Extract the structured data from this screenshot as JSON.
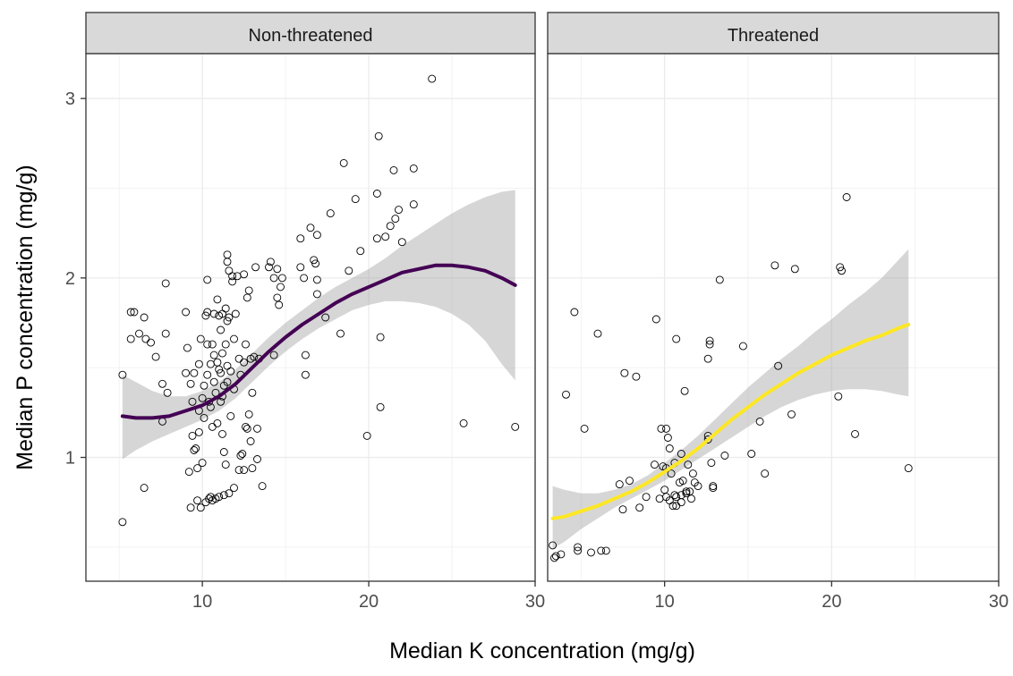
{
  "chart_data": {
    "type": "scatter",
    "x_label": "Median K concentration (mg/g)",
    "y_label": "Median P concentration (mg/g)",
    "x_ticks": [
      10,
      20,
      30
    ],
    "y_ticks": [
      1,
      2,
      3
    ],
    "x_range": [
      3,
      30
    ],
    "y_range": [
      0.31,
      3.25
    ],
    "grid": true,
    "facets": [
      {
        "label": "Non-threatened",
        "smooth_color": "#440154",
        "points": [
          [
            5.2,
            0.64
          ],
          [
            5.2,
            1.46
          ],
          [
            6.5,
            0.83
          ],
          [
            5.7,
            1.81
          ],
          [
            5.9,
            1.81
          ],
          [
            5.7,
            1.66
          ],
          [
            6.2,
            1.69
          ],
          [
            6.5,
            1.78
          ],
          [
            6.6,
            1.66
          ],
          [
            6.9,
            1.64
          ],
          [
            7.2,
            1.56
          ],
          [
            7.6,
            1.41
          ],
          [
            7.6,
            1.2
          ],
          [
            7.8,
            1.97
          ],
          [
            7.8,
            1.69
          ],
          [
            7.9,
            1.36
          ],
          [
            9.0,
            1.81
          ],
          [
            9.0,
            1.47
          ],
          [
            9.1,
            1.61
          ],
          [
            9.2,
            0.92
          ],
          [
            9.3,
            0.72
          ],
          [
            9.3,
            1.41
          ],
          [
            9.4,
            1.31
          ],
          [
            9.4,
            1.12
          ],
          [
            9.5,
            1.04
          ],
          [
            9.5,
            1.47
          ],
          [
            9.6,
            1.05
          ],
          [
            9.7,
            0.76
          ],
          [
            9.7,
            0.94
          ],
          [
            9.8,
            1.52
          ],
          [
            9.8,
            1.26
          ],
          [
            9.8,
            1.14
          ],
          [
            9.9,
            1.66
          ],
          [
            9.9,
            0.72
          ],
          [
            10.0,
            0.97
          ],
          [
            10.0,
            1.33
          ],
          [
            10.1,
            1.4
          ],
          [
            10.1,
            1.22
          ],
          [
            10.2,
            1.79
          ],
          [
            10.2,
            0.75
          ],
          [
            10.3,
            1.99
          ],
          [
            10.3,
            1.81
          ],
          [
            10.3,
            1.63
          ],
          [
            10.3,
            1.46
          ],
          [
            10.4,
            1.31
          ],
          [
            10.4,
            0.77
          ],
          [
            10.5,
            1.52
          ],
          [
            10.5,
            1.28
          ],
          [
            10.6,
            1.17
          ],
          [
            10.6,
            0.76
          ],
          [
            10.7,
            1.8
          ],
          [
            10.7,
            1.57
          ],
          [
            10.7,
            1.42
          ],
          [
            10.8,
            1.36
          ],
          [
            10.8,
            0.77
          ],
          [
            10.9,
            1.88
          ],
          [
            10.9,
            1.53
          ],
          [
            10.9,
            1.19
          ],
          [
            11.0,
            1.79
          ],
          [
            11.0,
            0.78
          ],
          [
            11.1,
            1.71
          ],
          [
            11.1,
            1.47
          ],
          [
            11.1,
            1.31
          ],
          [
            11.2,
            1.8
          ],
          [
            11.2,
            1.58
          ],
          [
            11.2,
            1.34
          ],
          [
            11.2,
            1.13
          ],
          [
            11.3,
            1.4
          ],
          [
            11.3,
            1.03
          ],
          [
            11.3,
            0.79
          ],
          [
            11.4,
            1.83
          ],
          [
            11.4,
            1.63
          ],
          [
            11.4,
            0.96
          ],
          [
            11.5,
            2.13
          ],
          [
            11.5,
            2.09
          ],
          [
            11.5,
            1.76
          ],
          [
            11.5,
            1.51
          ],
          [
            11.6,
            2.04
          ],
          [
            11.6,
            1.78
          ],
          [
            11.6,
            0.8
          ],
          [
            11.7,
            1.48
          ],
          [
            11.7,
            1.23
          ],
          [
            11.8,
            2.01
          ],
          [
            11.8,
            1.98
          ],
          [
            11.9,
            1.66
          ],
          [
            11.9,
            1.38
          ],
          [
            11.9,
            0.83
          ],
          [
            12.0,
            1.8
          ],
          [
            12.1,
            2.01
          ],
          [
            12.2,
            1.55
          ],
          [
            12.2,
            0.93
          ],
          [
            12.3,
            1.46
          ],
          [
            12.3,
            1.01
          ],
          [
            12.4,
            1.02
          ],
          [
            12.5,
            2.02
          ],
          [
            12.5,
            1.53
          ],
          [
            12.5,
            0.93
          ],
          [
            12.6,
            1.63
          ],
          [
            12.6,
            1.17
          ],
          [
            12.7,
            1.89
          ],
          [
            12.7,
            1.16
          ],
          [
            12.8,
            1.93
          ],
          [
            12.8,
            1.24
          ],
          [
            12.9,
            1.55
          ],
          [
            12.9,
            1.09
          ],
          [
            13.0,
            0.94
          ],
          [
            13.0,
            1.36
          ],
          [
            13.1,
            1.56
          ],
          [
            13.2,
            2.06
          ],
          [
            13.3,
            1.16
          ],
          [
            13.3,
            0.99
          ],
          [
            13.4,
            1.55
          ],
          [
            13.6,
            0.84
          ],
          [
            14.0,
            2.06
          ],
          [
            14.1,
            2.09
          ],
          [
            14.3,
            2.0
          ],
          [
            14.3,
            1.57
          ],
          [
            14.5,
            2.05
          ],
          [
            14.5,
            1.89
          ],
          [
            14.6,
            1.85
          ],
          [
            14.7,
            1.95
          ],
          [
            14.8,
            2.0
          ],
          [
            15.9,
            2.22
          ],
          [
            15.9,
            2.06
          ],
          [
            16.1,
            2.0
          ],
          [
            16.2,
            1.46
          ],
          [
            16.2,
            1.57
          ],
          [
            16.5,
            2.28
          ],
          [
            16.7,
            2.1
          ],
          [
            16.8,
            2.08
          ],
          [
            16.9,
            2.24
          ],
          [
            16.9,
            1.91
          ],
          [
            16.9,
            1.99
          ],
          [
            17.4,
            1.78
          ],
          [
            17.7,
            2.36
          ],
          [
            18.3,
            1.69
          ],
          [
            18.5,
            2.64
          ],
          [
            18.8,
            2.04
          ],
          [
            19.2,
            2.44
          ],
          [
            19.5,
            2.15
          ],
          [
            19.9,
            1.12
          ],
          [
            20.5,
            2.47
          ],
          [
            20.5,
            2.22
          ],
          [
            20.6,
            2.79
          ],
          [
            20.7,
            1.67
          ],
          [
            20.7,
            1.28
          ],
          [
            21.0,
            2.23
          ],
          [
            21.3,
            2.29
          ],
          [
            21.5,
            2.6
          ],
          [
            21.6,
            2.33
          ],
          [
            21.8,
            2.38
          ],
          [
            22.0,
            2.2
          ],
          [
            22.7,
            2.41
          ],
          [
            22.7,
            2.61
          ],
          [
            23.8,
            3.11
          ],
          [
            25.7,
            1.19
          ],
          [
            28.8,
            1.17
          ],
          [
            11.5,
            1.42
          ],
          [
            10.5,
            0.78
          ],
          [
            11.0,
            1.49
          ],
          [
            10.6,
            1.63
          ]
        ],
        "smooth": {
          "x": [
            5.2,
            6.0,
            7.0,
            8.0,
            9.0,
            10.0,
            11.0,
            12.0,
            13.0,
            14.0,
            15.0,
            16.0,
            17.0,
            18.0,
            19.0,
            20.0,
            21.0,
            22.0,
            23.0,
            24.0,
            25.0,
            26.0,
            27.0,
            28.0,
            28.8
          ],
          "fit": [
            1.23,
            1.22,
            1.22,
            1.23,
            1.26,
            1.29,
            1.34,
            1.41,
            1.5,
            1.59,
            1.67,
            1.74,
            1.8,
            1.86,
            1.91,
            1.95,
            1.99,
            2.03,
            2.05,
            2.07,
            2.07,
            2.06,
            2.04,
            2.0,
            1.96
          ],
          "lower": [
            0.99,
            1.04,
            1.09,
            1.13,
            1.17,
            1.21,
            1.26,
            1.33,
            1.42,
            1.51,
            1.59,
            1.66,
            1.72,
            1.77,
            1.82,
            1.85,
            1.87,
            1.87,
            1.86,
            1.84,
            1.8,
            1.74,
            1.65,
            1.52,
            1.43
          ],
          "upper": [
            1.46,
            1.42,
            1.37,
            1.34,
            1.34,
            1.37,
            1.42,
            1.49,
            1.58,
            1.67,
            1.75,
            1.82,
            1.89,
            1.95,
            2.0,
            2.05,
            2.11,
            2.18,
            2.24,
            2.3,
            2.36,
            2.41,
            2.45,
            2.48,
            2.49
          ]
        }
      },
      {
        "label": "Threatened",
        "smooth_color": "#fde725",
        "points": [
          [
            3.3,
            0.51
          ],
          [
            3.4,
            0.44
          ],
          [
            3.5,
            0.45
          ],
          [
            3.8,
            0.46
          ],
          [
            4.1,
            1.35
          ],
          [
            4.6,
            1.81
          ],
          [
            4.8,
            0.48
          ],
          [
            4.8,
            0.5
          ],
          [
            5.2,
            1.16
          ],
          [
            5.6,
            0.47
          ],
          [
            6.0,
            1.69
          ],
          [
            6.2,
            0.48
          ],
          [
            6.5,
            0.48
          ],
          [
            7.3,
            0.85
          ],
          [
            7.5,
            0.71
          ],
          [
            7.6,
            1.47
          ],
          [
            7.9,
            0.87
          ],
          [
            8.3,
            1.45
          ],
          [
            8.5,
            0.72
          ],
          [
            8.9,
            0.78
          ],
          [
            9.4,
            0.96
          ],
          [
            9.5,
            1.77
          ],
          [
            9.7,
            0.77
          ],
          [
            9.8,
            1.16
          ],
          [
            9.9,
            0.95
          ],
          [
            10.0,
            0.82
          ],
          [
            10.1,
            1.16
          ],
          [
            10.1,
            0.94
          ],
          [
            10.1,
            0.78
          ],
          [
            10.2,
            1.11
          ],
          [
            10.3,
            1.05
          ],
          [
            10.3,
            0.76
          ],
          [
            10.4,
            0.91
          ],
          [
            10.5,
            0.73
          ],
          [
            10.6,
            0.97
          ],
          [
            10.6,
            0.79
          ],
          [
            10.7,
            1.66
          ],
          [
            10.7,
            0.73
          ],
          [
            10.9,
            0.86
          ],
          [
            11.0,
            0.75
          ],
          [
            11.0,
            1.02
          ],
          [
            11.1,
            0.87
          ],
          [
            11.2,
            1.37
          ],
          [
            11.3,
            0.8
          ],
          [
            11.4,
            0.96
          ],
          [
            11.5,
            0.81
          ],
          [
            11.6,
            0.77
          ],
          [
            11.7,
            0.91
          ],
          [
            11.8,
            0.86
          ],
          [
            12.0,
            0.84
          ],
          [
            12.6,
            1.1
          ],
          [
            12.6,
            1.12
          ],
          [
            12.6,
            1.55
          ],
          [
            12.7,
            1.63
          ],
          [
            12.7,
            1.65
          ],
          [
            12.8,
            0.97
          ],
          [
            12.9,
            0.84
          ],
          [
            12.9,
            0.83
          ],
          [
            13.3,
            1.99
          ],
          [
            13.6,
            1.01
          ],
          [
            14.7,
            1.62
          ],
          [
            15.2,
            1.02
          ],
          [
            15.7,
            1.2
          ],
          [
            16.0,
            0.91
          ],
          [
            16.6,
            2.07
          ],
          [
            16.8,
            1.51
          ],
          [
            17.6,
            1.24
          ],
          [
            17.8,
            2.05
          ],
          [
            20.4,
            1.34
          ],
          [
            20.5,
            2.06
          ],
          [
            20.6,
            2.04
          ],
          [
            20.9,
            2.45
          ],
          [
            21.4,
            1.13
          ],
          [
            24.6,
            0.94
          ],
          [
            11.3,
            0.81
          ],
          [
            11.0,
            0.79
          ],
          [
            10.7,
            0.78
          ]
        ],
        "smooth": {
          "x": [
            3.3,
            4.0,
            5.0,
            6.0,
            7.0,
            8.0,
            9.0,
            10.0,
            11.0,
            12.0,
            13.0,
            14.0,
            15.0,
            16.0,
            17.0,
            18.0,
            19.0,
            20.0,
            21.0,
            22.0,
            23.0,
            24.0,
            24.6
          ],
          "fit": [
            0.66,
            0.67,
            0.7,
            0.73,
            0.77,
            0.81,
            0.86,
            0.92,
            0.98,
            1.05,
            1.13,
            1.21,
            1.28,
            1.35,
            1.41,
            1.47,
            1.52,
            1.57,
            1.61,
            1.65,
            1.68,
            1.72,
            1.74
          ],
          "lower": [
            0.49,
            0.53,
            0.6,
            0.66,
            0.72,
            0.77,
            0.82,
            0.87,
            0.93,
            0.99,
            1.05,
            1.11,
            1.17,
            1.23,
            1.28,
            1.32,
            1.35,
            1.37,
            1.38,
            1.38,
            1.37,
            1.35,
            1.34
          ],
          "upper": [
            0.84,
            0.82,
            0.8,
            0.8,
            0.82,
            0.85,
            0.9,
            0.97,
            1.04,
            1.12,
            1.21,
            1.3,
            1.39,
            1.47,
            1.55,
            1.62,
            1.7,
            1.77,
            1.85,
            1.92,
            2.0,
            2.1,
            2.16
          ]
        }
      }
    ]
  }
}
